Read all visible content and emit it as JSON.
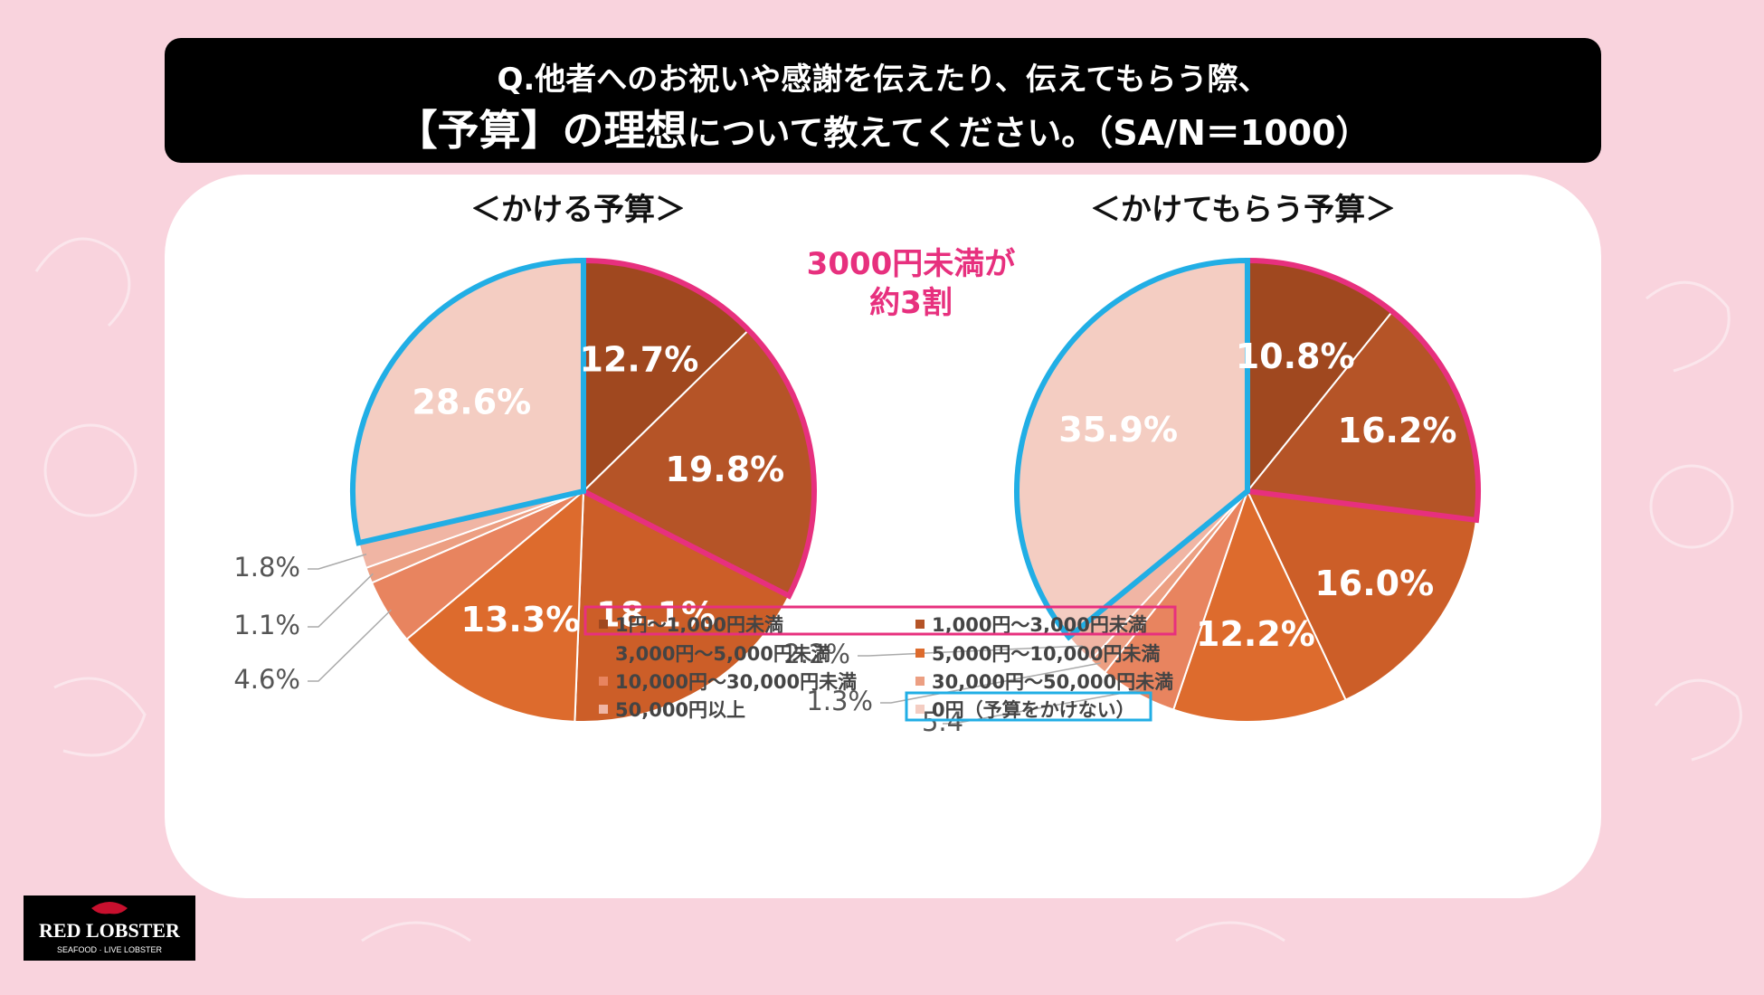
{
  "question": {
    "line1": "Q.他者へのお祝いや感謝を伝えたり、伝えてもらう際、",
    "line2_emphasis": "【予算】の理想",
    "line2_rest": "について教えてください。（SA/N＝1000）"
  },
  "callout": {
    "line1": "3000円未満が",
    "line2": "約3割",
    "color": "#e7307e"
  },
  "highlight_colors": {
    "pink": "#e7307e",
    "blue": "#21aee5"
  },
  "categories": [
    "1円～1,000円未満",
    "1,000円～3,000円未満",
    "3,000円～5,000円未満",
    "5,000円～10,000円未満",
    "10,000円～30,000円未満",
    "30,000円～50,000円未満",
    "50,000円以上",
    "0円（予算をかけない）"
  ],
  "colors": [
    "#a0481f",
    "#b55427",
    "#cc5e28",
    "#dd6b2d",
    "#e8845f",
    "#ec9f82",
    "#f0b5a4",
    "#f4cdc2"
  ],
  "chart_data": [
    {
      "type": "pie",
      "title": "＜かける予算＞",
      "categories": [
        "1円～1,000円未満",
        "1,000円～3,000円未満",
        "3,000円～5,000円未満",
        "5,000円～10,000円未満",
        "10,000円～30,000円未満",
        "30,000円～50,000円未満",
        "50,000円以上",
        "0円（予算をかけない）"
      ],
      "values": [
        12.7,
        19.8,
        18.1,
        13.3,
        4.6,
        1.1,
        1.8,
        28.6
      ],
      "labels": [
        "12.7%",
        "19.8%",
        "18.1%",
        "13.3%",
        "4.6%",
        "1.1%",
        "1.8%",
        "28.6%"
      ],
      "unit": "%"
    },
    {
      "type": "pie",
      "title": "＜かけてもらう予算＞",
      "categories": [
        "1円～1,000円未満",
        "1,000円～3,000円未満",
        "3,000円～5,000円未満",
        "5,000円～10,000円未満",
        "10,000円～30,000円未満",
        "30,000円～50,000円未満",
        "50,000円以上",
        "0円（予算をかけない）"
      ],
      "values": [
        10.8,
        16.2,
        16.0,
        12.2,
        5.4,
        1.3,
        2.2,
        35.9
      ],
      "labels": [
        "10.8%",
        "16.2%",
        "16.0%",
        "12.2%",
        "5.4",
        "1.3%",
        "2.2%",
        "35.9%"
      ],
      "unit": "%"
    }
  ],
  "logo": {
    "name": "RED LOBSTER",
    "tagline": "SEAFOOD · LIVE LOBSTER"
  }
}
